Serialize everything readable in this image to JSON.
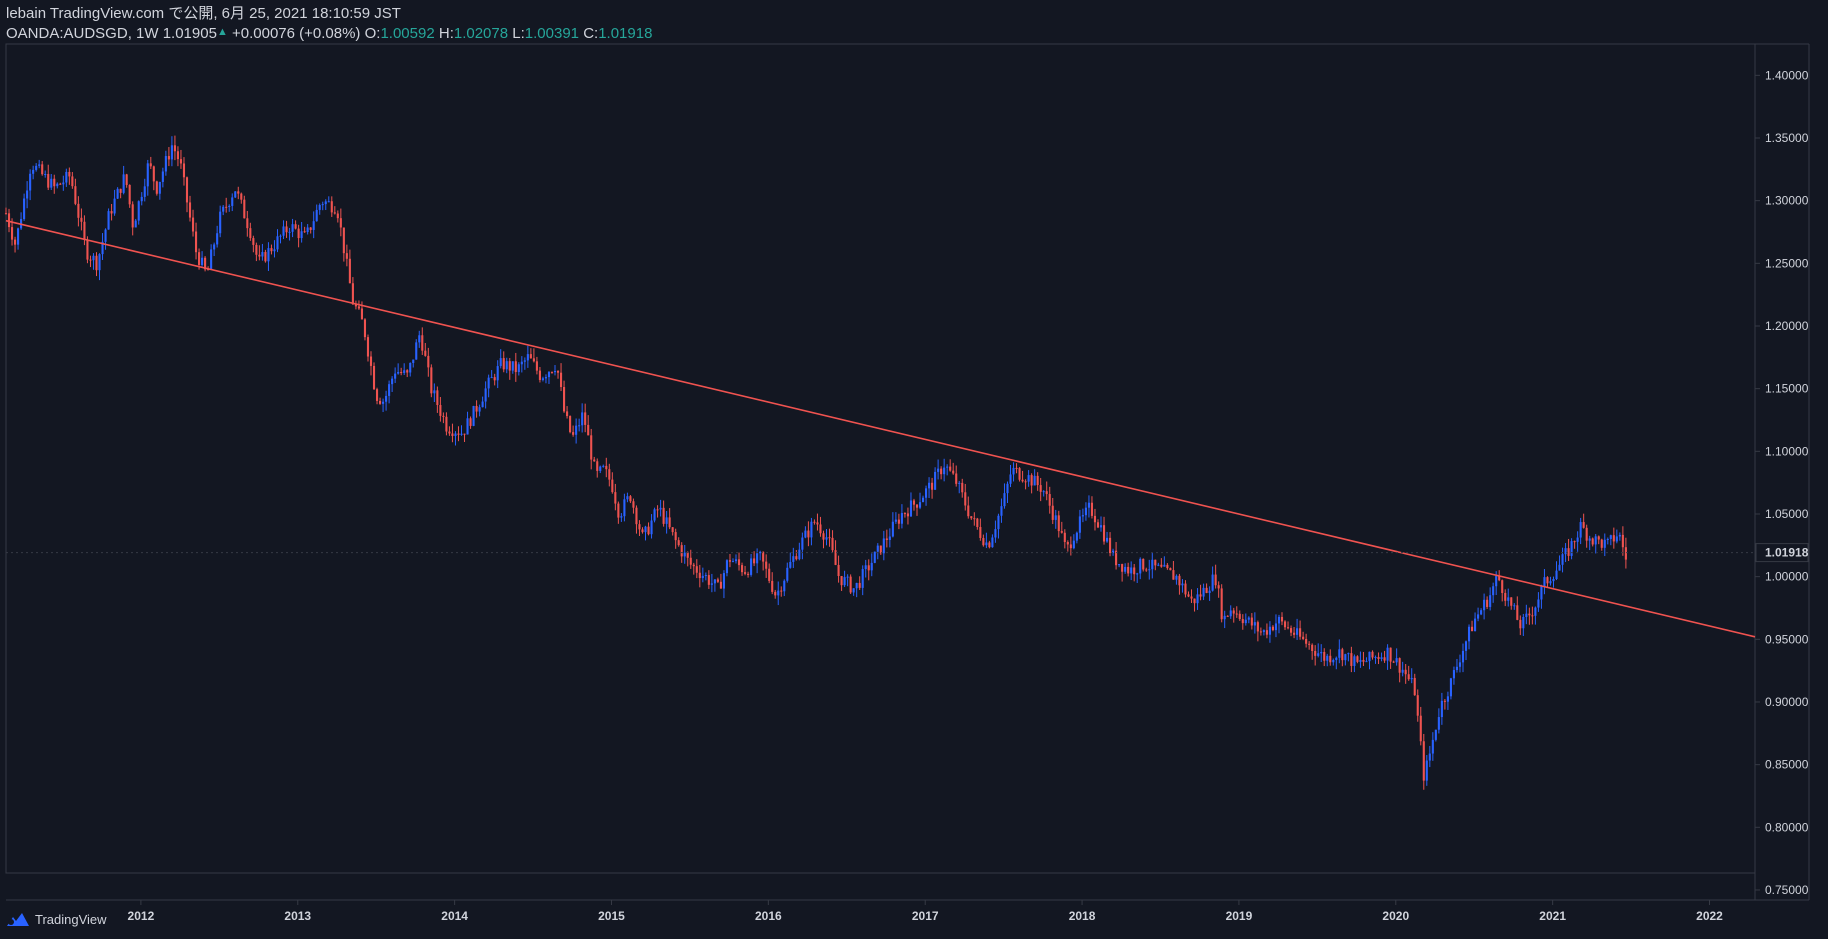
{
  "header": {
    "published": "lebain TradingView.com で公開, 6月 25, 2021 18:10:59 JST",
    "symbol": "OANDA:AUDSGD",
    "interval": "1W",
    "last": "1.01905",
    "up_glyph": "▲",
    "change": "+0.00076 (+0.08%)",
    "open_label": "O:",
    "open": "1.00592",
    "high_label": "H:",
    "high": "1.02078",
    "low_label": "L:",
    "low": "1.00391",
    "close_label": "C:",
    "close": "1.01918"
  },
  "footer": {
    "brand": "TradingView",
    "logo_icon": "tradingview-logo-icon"
  },
  "colors": {
    "background": "#131722",
    "up": "#2962ff",
    "down": "#ef5350",
    "trendline": "#f05350",
    "axis_text": "#d1d4dc",
    "price_label_bg": "#131722",
    "ohlc_value": "#26a69a"
  },
  "chart_data": {
    "type": "candlestick",
    "interval": "1W",
    "symbol": "OANDA:AUDSGD",
    "y_ticks": [
      "1.40000",
      "1.35000",
      "1.30000",
      "1.25000",
      "1.20000",
      "1.15000",
      "1.10000",
      "1.05000",
      "1.00000",
      "0.95000",
      "0.90000",
      "0.85000",
      "0.80000",
      "0.75000"
    ],
    "ylim": [
      0.742,
      1.425
    ],
    "x_ticks": [
      "2012",
      "2013",
      "2014",
      "2015",
      "2016",
      "2017",
      "2018",
      "2019",
      "2020",
      "2021",
      "2022"
    ],
    "xlim": [
      2011.14,
      2022.29
    ],
    "last_price_label": "1.01918",
    "last_price": 1.01918,
    "trendline": {
      "start": [
        2011.14,
        1.284
      ],
      "end": [
        2022.29,
        0.952
      ]
    },
    "path": [
      [
        2011.14,
        1.29
      ],
      [
        2011.2,
        1.265
      ],
      [
        2011.3,
        1.33
      ],
      [
        2011.45,
        1.31
      ],
      [
        2011.55,
        1.32
      ],
      [
        2011.65,
        1.26
      ],
      [
        2011.72,
        1.25
      ],
      [
        2011.8,
        1.29
      ],
      [
        2011.9,
        1.32
      ],
      [
        2011.95,
        1.28
      ],
      [
        2012.05,
        1.33
      ],
      [
        2012.1,
        1.31
      ],
      [
        2012.2,
        1.345
      ],
      [
        2012.25,
        1.33
      ],
      [
        2012.35,
        1.26
      ],
      [
        2012.42,
        1.24
      ],
      [
        2012.5,
        1.285
      ],
      [
        2012.6,
        1.31
      ],
      [
        2012.7,
        1.275
      ],
      [
        2012.75,
        1.25
      ],
      [
        2012.85,
        1.265
      ],
      [
        2012.95,
        1.28
      ],
      [
        2013.05,
        1.27
      ],
      [
        2013.15,
        1.3
      ],
      [
        2013.25,
        1.295
      ],
      [
        2013.35,
        1.22
      ],
      [
        2013.42,
        1.2
      ],
      [
        2013.5,
        1.145
      ],
      [
        2013.55,
        1.14
      ],
      [
        2013.62,
        1.165
      ],
      [
        2013.7,
        1.16
      ],
      [
        2013.78,
        1.195
      ],
      [
        2013.85,
        1.15
      ],
      [
        2013.95,
        1.12
      ],
      [
        2014.05,
        1.115
      ],
      [
        2014.12,
        1.13
      ],
      [
        2014.2,
        1.15
      ],
      [
        2014.3,
        1.17
      ],
      [
        2014.4,
        1.165
      ],
      [
        2014.47,
        1.175
      ],
      [
        2014.55,
        1.16
      ],
      [
        2014.65,
        1.17
      ],
      [
        2014.7,
        1.13
      ],
      [
        2014.75,
        1.11
      ],
      [
        2014.82,
        1.13
      ],
      [
        2014.9,
        1.08
      ],
      [
        2014.95,
        1.085
      ],
      [
        2015.0,
        1.075
      ],
      [
        2015.05,
        1.05
      ],
      [
        2015.12,
        1.065
      ],
      [
        2015.2,
        1.03
      ],
      [
        2015.3,
        1.055
      ],
      [
        2015.4,
        1.03
      ],
      [
        2015.5,
        1.01
      ],
      [
        2015.6,
        1.0
      ],
      [
        2015.68,
        0.99
      ],
      [
        2015.75,
        1.015
      ],
      [
        2015.85,
        1.005
      ],
      [
        2015.95,
        1.015
      ],
      [
        2016.05,
        0.985
      ],
      [
        2016.12,
        1.005
      ],
      [
        2016.2,
        1.025
      ],
      [
        2016.3,
        1.045
      ],
      [
        2016.38,
        1.03
      ],
      [
        2016.45,
        1.0
      ],
      [
        2016.55,
        0.99
      ],
      [
        2016.65,
        1.01
      ],
      [
        2016.75,
        1.03
      ],
      [
        2016.85,
        1.05
      ],
      [
        2016.95,
        1.06
      ],
      [
        2017.05,
        1.075
      ],
      [
        2017.12,
        1.09
      ],
      [
        2017.2,
        1.075
      ],
      [
        2017.3,
        1.045
      ],
      [
        2017.4,
        1.025
      ],
      [
        2017.5,
        1.06
      ],
      [
        2017.55,
        1.085
      ],
      [
        2017.65,
        1.08
      ],
      [
        2017.75,
        1.07
      ],
      [
        2017.85,
        1.04
      ],
      [
        2017.9,
        1.02
      ],
      [
        2017.95,
        1.035
      ],
      [
        2018.05,
        1.055
      ],
      [
        2018.12,
        1.04
      ],
      [
        2018.2,
        1.015
      ],
      [
        2018.3,
        1.005
      ],
      [
        2018.4,
        1.01
      ],
      [
        2018.5,
        1.005
      ],
      [
        2018.6,
        1.0
      ],
      [
        2018.7,
        0.98
      ],
      [
        2018.75,
        0.985
      ],
      [
        2018.85,
        1.0
      ],
      [
        2018.9,
        0.965
      ],
      [
        2018.95,
        0.975
      ],
      [
        2019.05,
        0.965
      ],
      [
        2019.15,
        0.955
      ],
      [
        2019.25,
        0.965
      ],
      [
        2019.35,
        0.955
      ],
      [
        2019.45,
        0.945
      ],
      [
        2019.55,
        0.935
      ],
      [
        2019.65,
        0.94
      ],
      [
        2019.75,
        0.93
      ],
      [
        2019.85,
        0.935
      ],
      [
        2019.95,
        0.94
      ],
      [
        2020.05,
        0.925
      ],
      [
        2020.12,
        0.91
      ],
      [
        2020.18,
        0.84
      ],
      [
        2020.22,
        0.86
      ],
      [
        2020.28,
        0.895
      ],
      [
        2020.35,
        0.915
      ],
      [
        2020.42,
        0.94
      ],
      [
        2020.5,
        0.965
      ],
      [
        2020.6,
        0.985
      ],
      [
        2020.65,
        1.0
      ],
      [
        2020.72,
        0.98
      ],
      [
        2020.8,
        0.96
      ],
      [
        2020.88,
        0.975
      ],
      [
        2020.95,
        0.995
      ],
      [
        2021.05,
        1.01
      ],
      [
        2021.12,
        1.025
      ],
      [
        2021.18,
        1.04
      ],
      [
        2021.25,
        1.03
      ],
      [
        2021.35,
        1.025
      ],
      [
        2021.42,
        1.035
      ],
      [
        2021.48,
        1.01
      ]
    ]
  }
}
